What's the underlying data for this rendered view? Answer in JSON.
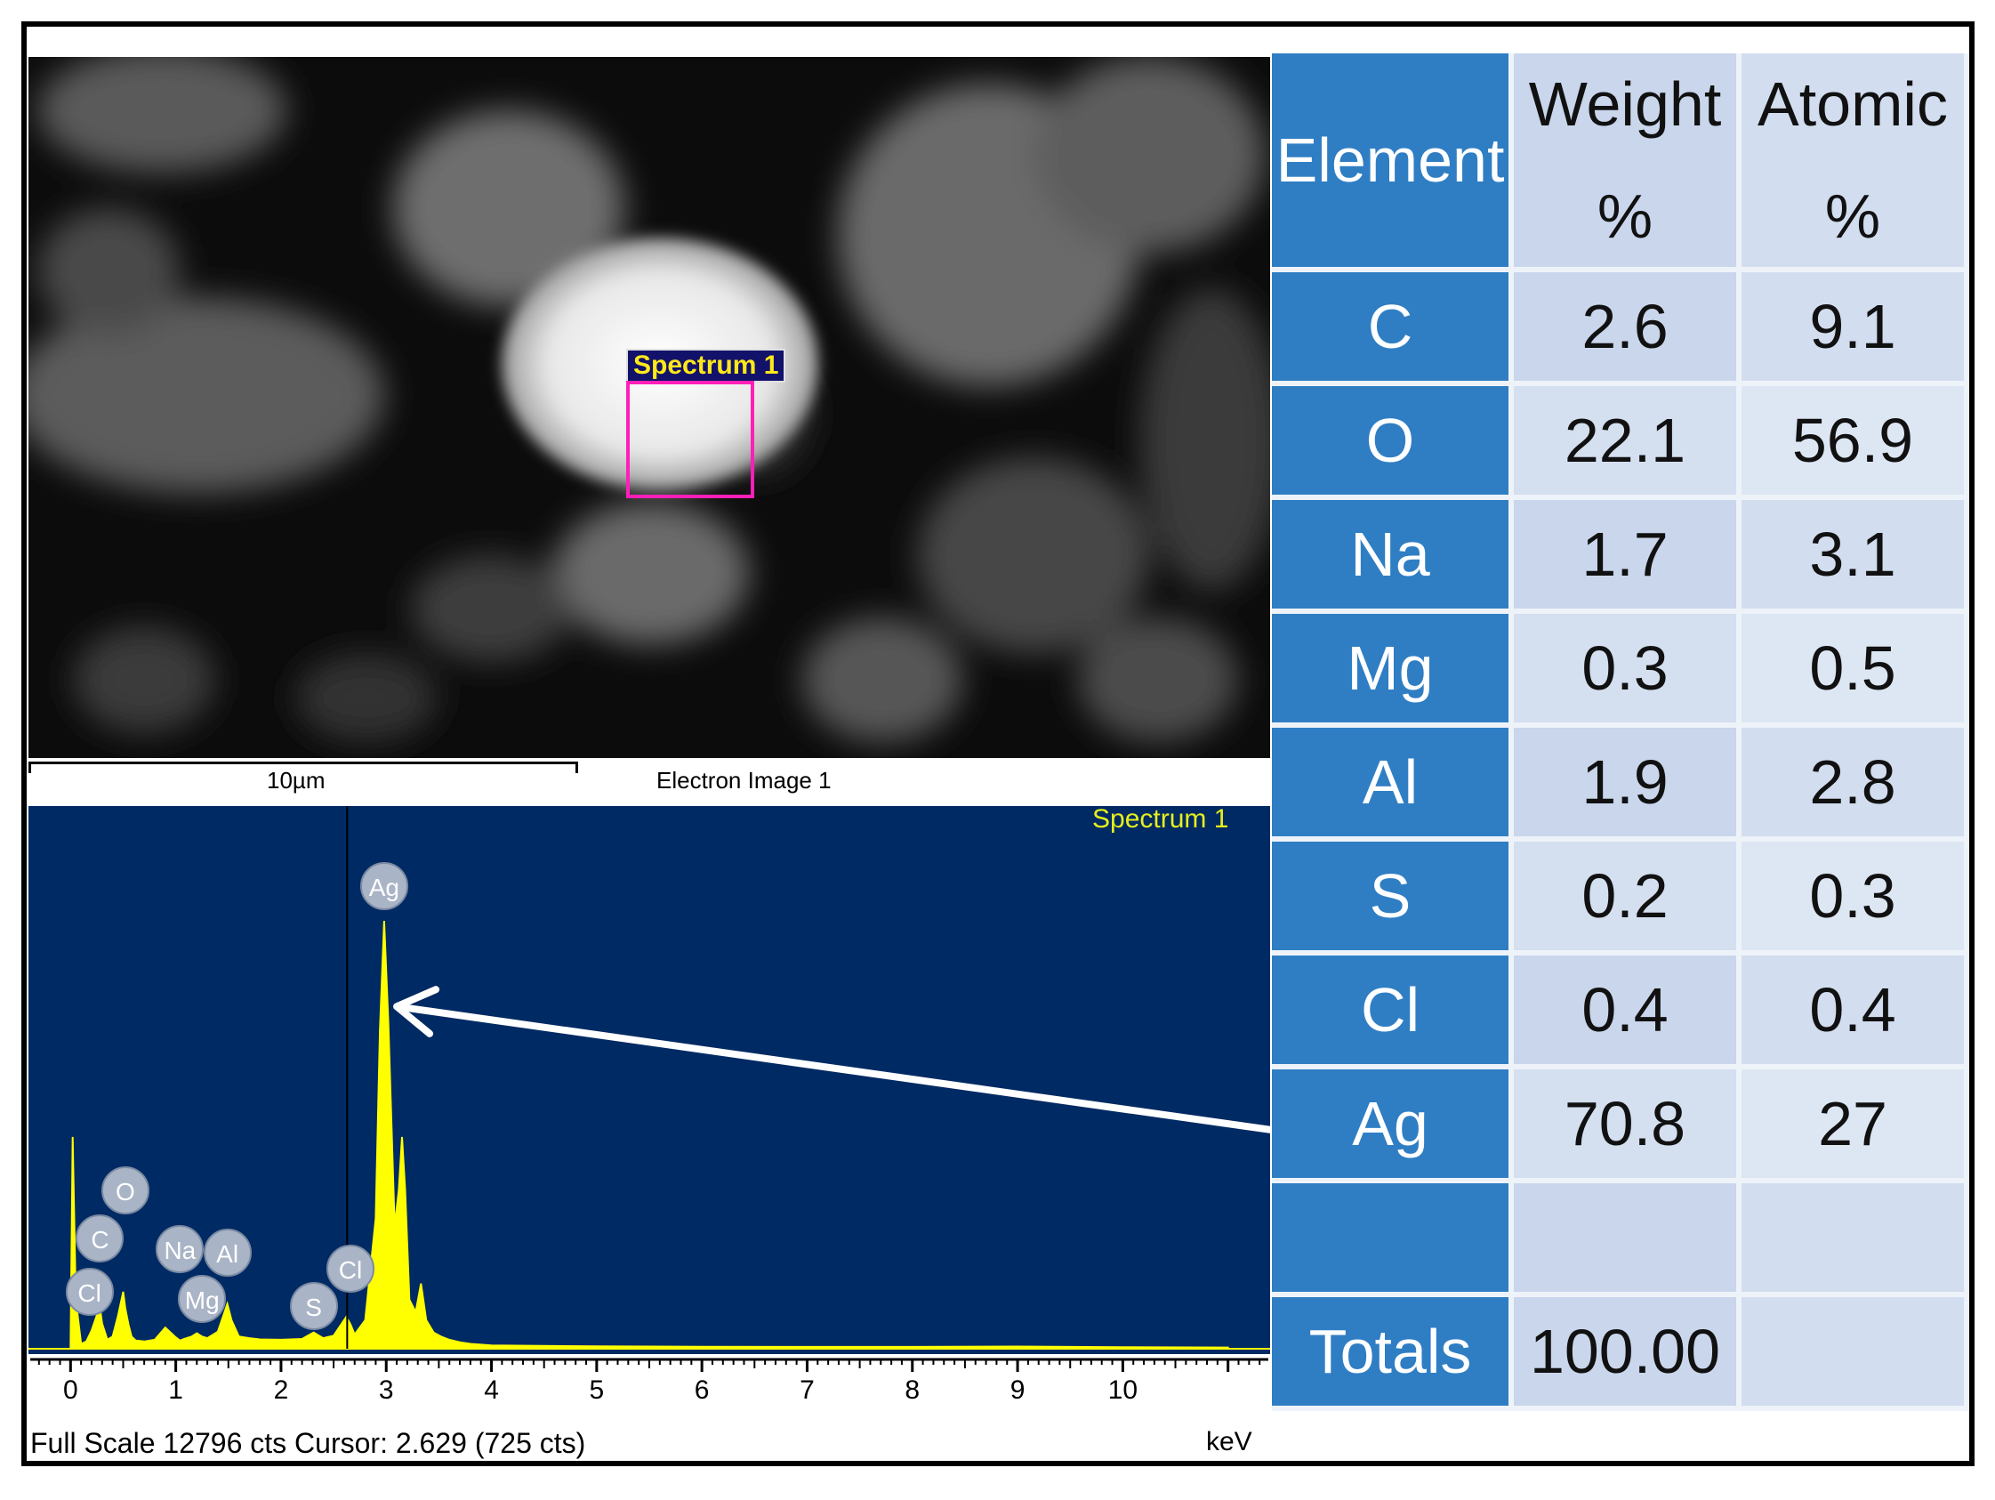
{
  "electron_image": {
    "region_label": "Spectrum 1",
    "scale_bar": "10µm",
    "title": "Electron Image 1"
  },
  "chart_data": {
    "type": "line",
    "title": "Spectrum 1",
    "xlabel": "keV",
    "ylabel": "",
    "xlim": [
      -0.4,
      11.4
    ],
    "ylim": [
      0,
      12796
    ],
    "x_ticks": [
      0,
      1,
      2,
      3,
      4,
      5,
      6,
      7,
      8,
      9,
      10
    ],
    "grid": false,
    "cursor_keV": 2.629,
    "status": "Full Scale 12796 cts Cursor: 2.629  (725 cts)",
    "series": [
      {
        "color": "#ffff00",
        "x": [
          0.0,
          0.02,
          0.05,
          0.1,
          0.15,
          0.2,
          0.25,
          0.28,
          0.3,
          0.35,
          0.4,
          0.45,
          0.5,
          0.52,
          0.55,
          0.58,
          0.62,
          0.7,
          0.8,
          0.9,
          1.0,
          1.04,
          1.08,
          1.15,
          1.2,
          1.25,
          1.3,
          1.4,
          1.45,
          1.49,
          1.53,
          1.6,
          1.7,
          1.8,
          2.0,
          2.2,
          2.31,
          2.4,
          2.5,
          2.62,
          2.66,
          2.7,
          2.8,
          2.9,
          2.94,
          2.98,
          3.02,
          3.08,
          3.12,
          3.15,
          3.18,
          3.22,
          3.28,
          3.33,
          3.38,
          3.45,
          3.52,
          3.6,
          3.7,
          3.8,
          4.0,
          5.0,
          6.0,
          7.0,
          8.0,
          9.0,
          10.0,
          11.0
        ],
        "y": [
          0,
          5200,
          1200,
          120,
          180,
          450,
          820,
          1000,
          620,
          220,
          300,
          800,
          1400,
          1000,
          600,
          300,
          200,
          180,
          220,
          520,
          280,
          200,
          240,
          300,
          380,
          300,
          260,
          420,
          800,
          1100,
          700,
          300,
          260,
          230,
          220,
          240,
          400,
          260,
          320,
          780,
          600,
          350,
          700,
          3200,
          7800,
          10500,
          8000,
          3000,
          3900,
          5200,
          3900,
          1200,
          900,
          1600,
          700,
          400,
          300,
          220,
          160,
          120,
          80,
          60,
          50,
          45,
          45,
          55,
          40,
          30
        ]
      }
    ],
    "peak_labels": [
      {
        "label": "Ag",
        "x": 2.98
      },
      {
        "label": "O",
        "x": 0.52
      },
      {
        "label": "C",
        "x": 0.28
      },
      {
        "label": "Cl",
        "x": 0.18
      },
      {
        "label": "Na",
        "x": 1.04
      },
      {
        "label": "Mg",
        "x": 1.25
      },
      {
        "label": "Al",
        "x": 1.49
      },
      {
        "label": "S",
        "x": 2.31
      },
      {
        "label": "Cl",
        "x": 2.66
      }
    ],
    "arrow_target": {
      "x": 3.1,
      "y": 8400
    }
  },
  "table": {
    "headers": [
      {
        "line1": "Element",
        "line2": ""
      },
      {
        "line1": "Weight",
        "line2": "%"
      },
      {
        "line1": "Atomic",
        "line2": "%"
      }
    ],
    "rows": [
      {
        "element": "C",
        "weight": "2.6",
        "atomic": "9.1"
      },
      {
        "element": "O",
        "weight": "22.1",
        "atomic": "56.9"
      },
      {
        "element": "Na",
        "weight": "1.7",
        "atomic": "3.1"
      },
      {
        "element": "Mg",
        "weight": "0.3",
        "atomic": "0.5"
      },
      {
        "element": "Al",
        "weight": "1.9",
        "atomic": "2.8"
      },
      {
        "element": "S",
        "weight": "0.2",
        "atomic": "0.3"
      },
      {
        "element": "Cl",
        "weight": "0.4",
        "atomic": "0.4"
      },
      {
        "element": "Ag",
        "weight": "70.8",
        "atomic": "27"
      },
      {
        "element": "",
        "weight": "",
        "atomic": ""
      }
    ],
    "totals": {
      "label": "Totals",
      "weight": "100.00",
      "atomic": ""
    }
  }
}
